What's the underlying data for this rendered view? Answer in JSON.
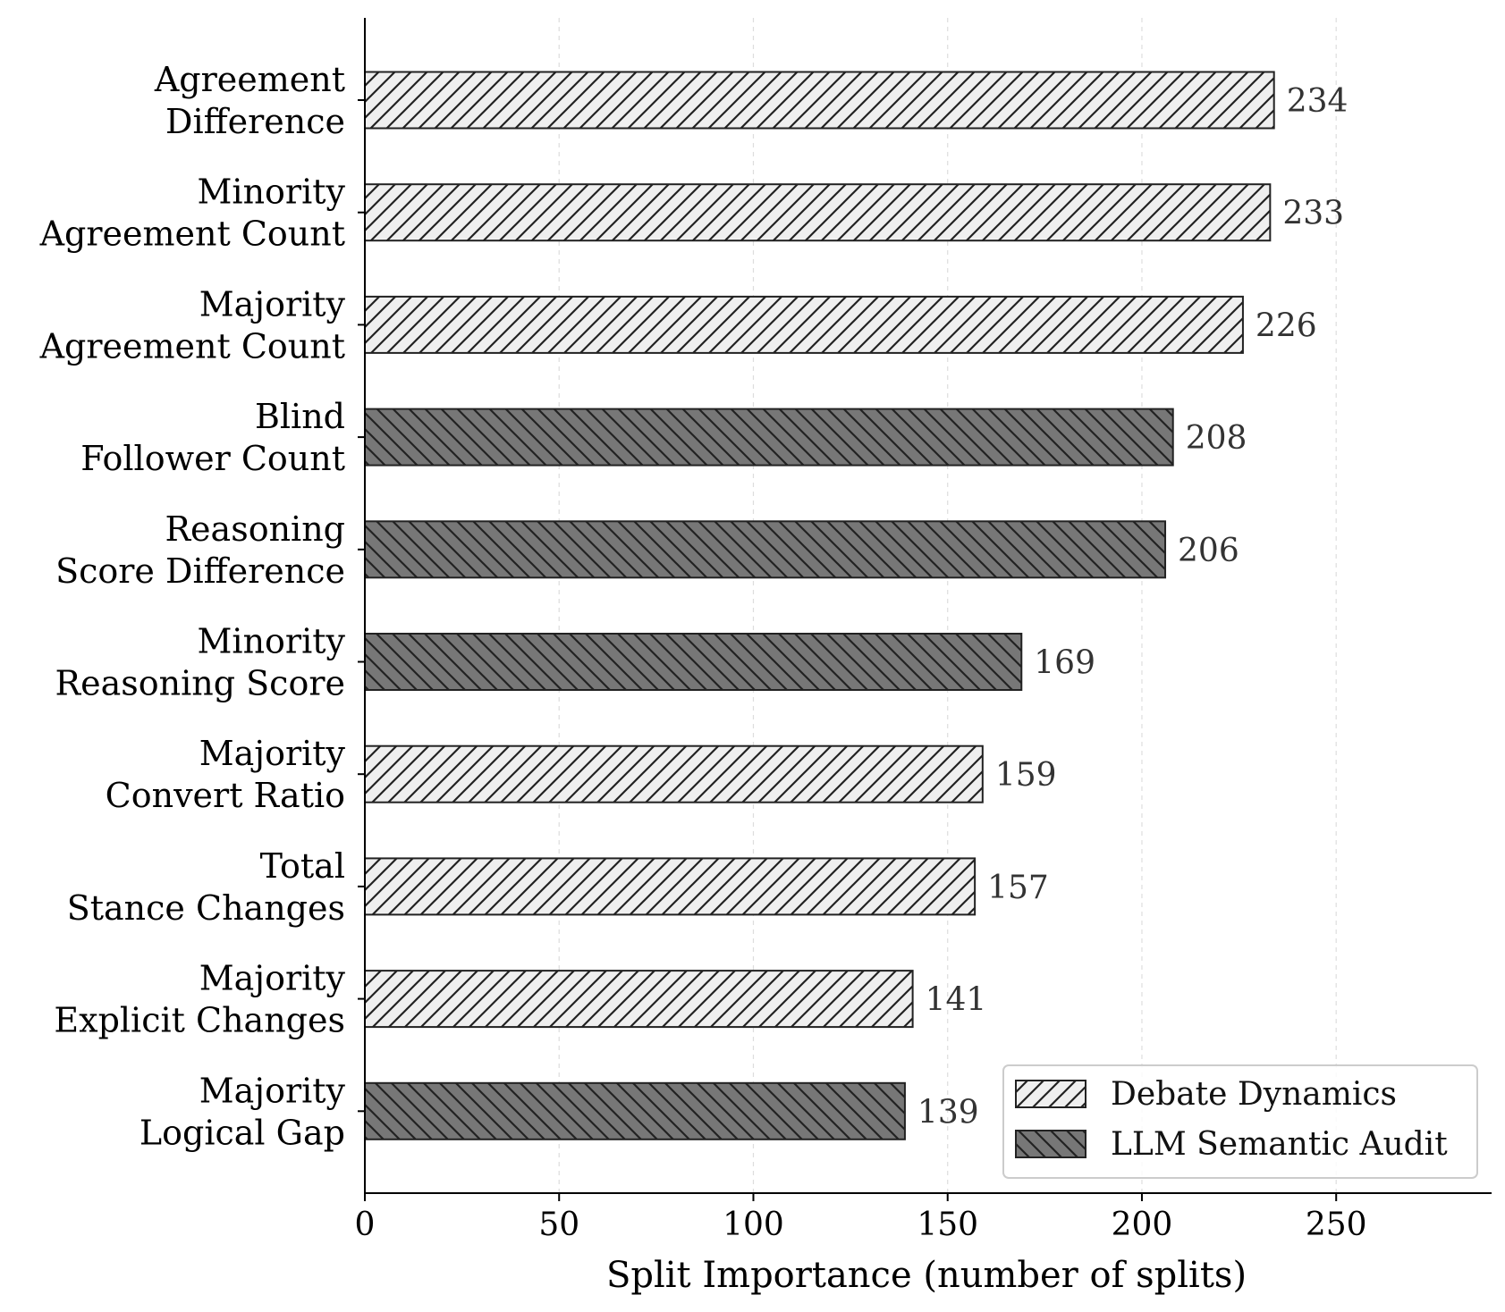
{
  "chart_data": {
    "type": "bar",
    "orientation": "horizontal",
    "categories": [
      [
        "Agreement",
        "Difference"
      ],
      [
        "Minority",
        "Agreement Count"
      ],
      [
        "Majority",
        "Agreement Count"
      ],
      [
        "Blind",
        "Follower Count"
      ],
      [
        "Reasoning",
        "Score Difference"
      ],
      [
        "Minority",
        "Reasoning Score"
      ],
      [
        "Majority",
        "Convert Ratio"
      ],
      [
        "Total",
        "Stance Changes"
      ],
      [
        "Majority",
        "Explicit Changes"
      ],
      [
        "Majority",
        "Logical Gap"
      ]
    ],
    "values": [
      234,
      233,
      226,
      208,
      206,
      169,
      159,
      157,
      141,
      139
    ],
    "group": [
      "Debate Dynamics",
      "Debate Dynamics",
      "Debate Dynamics",
      "LLM Semantic Audit",
      "LLM Semantic Audit",
      "LLM Semantic Audit",
      "Debate Dynamics",
      "Debate Dynamics",
      "Debate Dynamics",
      "LLM Semantic Audit"
    ],
    "legend": [
      {
        "name": "Debate Dynamics",
        "fill": "#efefef",
        "hatch": "forward"
      },
      {
        "name": "LLM Semantic Audit",
        "fill": "#777777",
        "hatch": "back"
      }
    ],
    "xlabel": "Split Importance (number of splits)",
    "ylabel": "",
    "title": "",
    "xlim": [
      0,
      290
    ],
    "xticks": [
      0,
      50,
      100,
      150,
      200,
      250
    ],
    "grid": "vertical dashed",
    "legend_position": "lower-right"
  }
}
